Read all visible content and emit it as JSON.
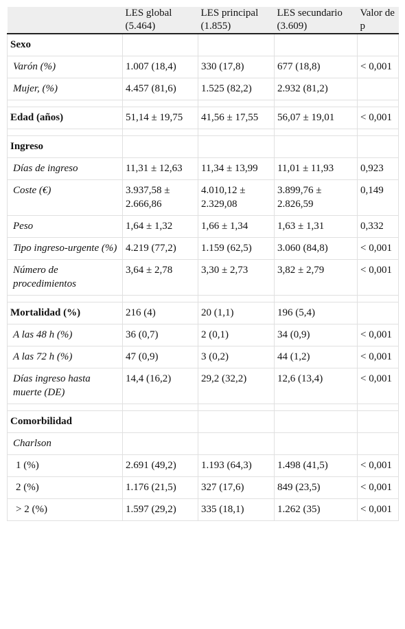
{
  "table": {
    "header": [
      "LES global (5.464)",
      "LES principal (1.855)",
      "LES secundario (3.609)",
      "Valor de p"
    ],
    "sections": [
      {
        "title": "Sexo",
        "rows": [
          {
            "label": "Varón (%)",
            "values": [
              "1.007 (18,4)",
              "330 (17,8)",
              "677 (18,8)",
              "< 0,001"
            ]
          },
          {
            "label": "Mujer, (%)",
            "values": [
              "4.457 (81,6)",
              "1.525 (82,2)",
              "2.932 (81,2)"
            ]
          }
        ]
      },
      {
        "title": "Edad (años)",
        "values": [
          "51,14 ± 19,75",
          "41,56 ± 17,55",
          "56,07 ± 19,01",
          "< 0,001"
        ],
        "rows": []
      },
      {
        "title": "Ingreso",
        "rows": [
          {
            "label": "Días de ingreso",
            "values": [
              "11,31 ± 12,63",
              "11,34 ± 13,99",
              "11,01 ± 11,93",
              "0,923"
            ]
          },
          {
            "label": "Coste (€)",
            "values": [
              "3.937,58 ± 2.666,86",
              "4.010,12 ± 2.329,08",
              "3.899,76 ± 2.826,59",
              "0,149"
            ]
          },
          {
            "label": "Peso",
            "values": [
              "1,64 ± 1,32",
              "1,66 ± 1,34",
              "1,63 ± 1,31",
              "0,332"
            ]
          },
          {
            "label": "Tipo ingreso-urgente (%)",
            "values": [
              "4.219 (77,2)",
              "1.159 (62,5)",
              "3.060 (84,8)",
              "< 0,001"
            ]
          },
          {
            "label": "Número de procedimientos",
            "values": [
              "3,64 ± 2,78",
              "3,30 ± 2,73",
              "3,82 ± 2,79",
              "< 0,001"
            ]
          }
        ]
      },
      {
        "title": "Mortalidad (%)",
        "values": [
          "216 (4)",
          "20 (1,1)",
          "196 (5,4)"
        ],
        "rows": [
          {
            "label": "A las 48 h (%)",
            "values": [
              "36 (0,7)",
              "2 (0,1)",
              "34 (0,9)",
              "< 0,001"
            ]
          },
          {
            "label": "A las 72 h (%)",
            "values": [
              "47 (0,9)",
              "3 (0,2)",
              "44 (1,2)",
              "< 0,001"
            ]
          },
          {
            "label": "Días ingreso hasta muerte (DE)",
            "values": [
              "14,4 (16,2)",
              "29,2 (32,2)",
              "12,6 (13,4)",
              "< 0,001"
            ]
          }
        ]
      },
      {
        "title": "Comorbilidad",
        "rows": [
          {
            "label": "Charlson",
            "rows": [
              {
                "label": "1 (%)",
                "values": [
                  "2.691 (49,2)",
                  "1.193 (64,3)",
                  "1.498 (41,5)",
                  "< 0,001"
                ]
              },
              {
                "label": "2 (%)",
                "values": [
                  "1.176 (21,5)",
                  "327 (17,6)",
                  "849 (23,5)",
                  "< 0,001"
                ]
              },
              {
                "label": "> 2 (%)",
                "values": [
                  "1.597 (29,2)",
                  "335 (18,1)",
                  "1.262 (35)",
                  "< 0,001"
                ]
              }
            ]
          }
        ]
      }
    ]
  }
}
